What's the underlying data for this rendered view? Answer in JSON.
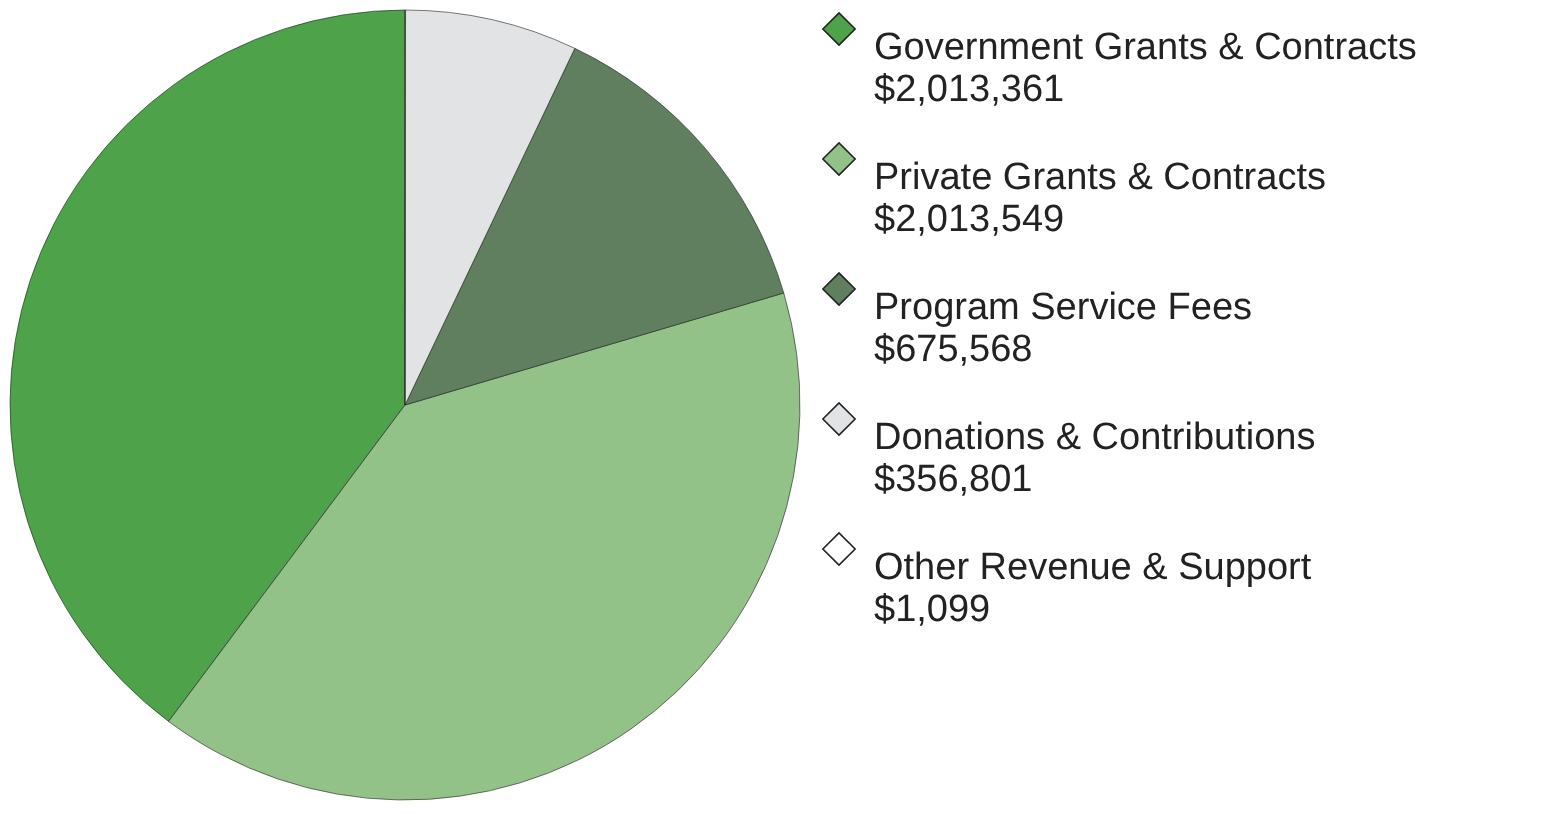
{
  "chart_data": {
    "type": "pie",
    "categories": [
      "Government Grants & Contracts",
      "Private Grants & Contracts",
      "Program Service Fees",
      "Donations & Contributions",
      "Other Revenue & Support"
    ],
    "values": [
      2013361,
      2013549,
      675568,
      356801,
      1099
    ],
    "value_labels": [
      "$2,013,361",
      "$2,013,549",
      "$675,568",
      "$356,801",
      "$1,099"
    ],
    "colors": [
      "#4ea24a",
      "#93c288",
      "#5f7f5f",
      "#e2e3e4",
      "#ffffff"
    ],
    "legend": "right"
  }
}
